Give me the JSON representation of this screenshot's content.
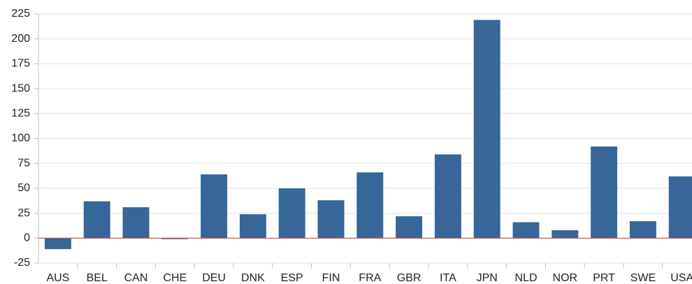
{
  "chart_data": {
    "type": "bar",
    "categories": [
      "AUS",
      "BEL",
      "CAN",
      "CHE",
      "DEU",
      "DNK",
      "ESP",
      "FIN",
      "FRA",
      "GBR",
      "ITA",
      "JPN",
      "NLD",
      "NOR",
      "PRT",
      "SWE",
      "USA"
    ],
    "values": [
      -11,
      37,
      31,
      -1,
      64,
      24,
      50,
      38,
      66,
      22,
      84,
      219,
      16,
      8,
      92,
      17,
      62
    ],
    "color": "#376699",
    "ylim": [
      -25,
      225
    ],
    "yticks": [
      -25,
      0,
      25,
      50,
      75,
      100,
      125,
      150,
      175,
      200,
      225
    ],
    "grid": true
  }
}
